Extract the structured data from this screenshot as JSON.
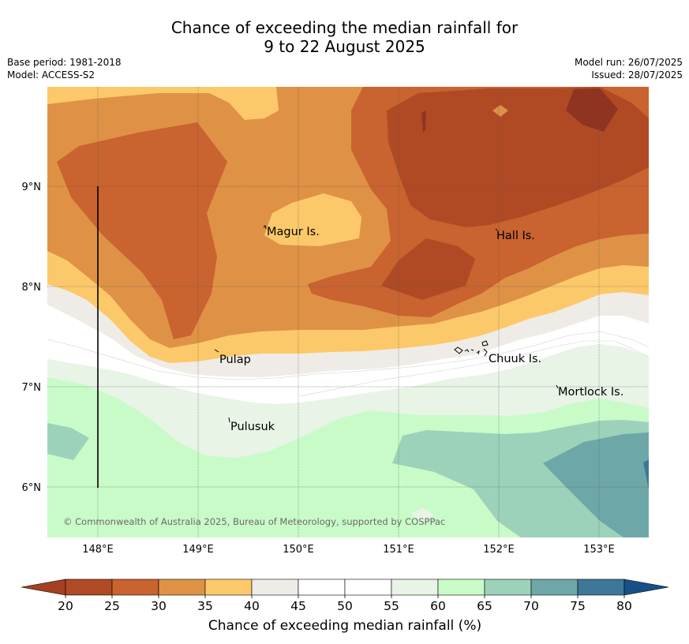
{
  "title_line1": "Chance of exceeding the median rainfall for",
  "title_line2": "9 to 22 August 2025",
  "meta": {
    "base_period": "Base period: 1981-2018",
    "model": "Model: ACCESS-S2",
    "model_run": "Model run: 26/07/2025",
    "issued": "Issued: 28/07/2025"
  },
  "axes": {
    "lon_labels": [
      "148°E",
      "149°E",
      "150°E",
      "151°E",
      "152°E",
      "153°E"
    ],
    "lat_labels": [
      "9°N",
      "8°N",
      "7°N",
      "6°N"
    ]
  },
  "places": {
    "magur": "Magur Is.",
    "hall": "Hall Is.",
    "pulap": "Pulap",
    "chuuk": "Chuuk Is.",
    "mortlock": "Mortlock Is.",
    "pulusuk": "Pulusuk"
  },
  "copyright": "© Commonwealth of Australia 2025, Bureau of Meteorology, supported by COSPPac",
  "colorbar": {
    "ticks": [
      "20",
      "25",
      "30",
      "35",
      "40",
      "45",
      "50",
      "55",
      "60",
      "65",
      "70",
      "75",
      "80"
    ],
    "colors": {
      "under": "#a4401f",
      "c20_25": "#b04a25",
      "c25_30": "#c9632f",
      "c30_35": "#df9246",
      "c35_40": "#fcc96a",
      "c40_45": "#efebe6",
      "c45_50": "#ffffff",
      "c50_55": "#ffffff",
      "c55_60": "#e8f4e6",
      "c60_65": "#c9fbc8",
      "c65_70": "#9dd2ba",
      "c70_75": "#6ea7a8",
      "c75_80": "#3e7898",
      "over": "#184f86",
      "dark_core": "#8f3420"
    },
    "label": "Chance of exceeding median rainfall (%)"
  }
}
